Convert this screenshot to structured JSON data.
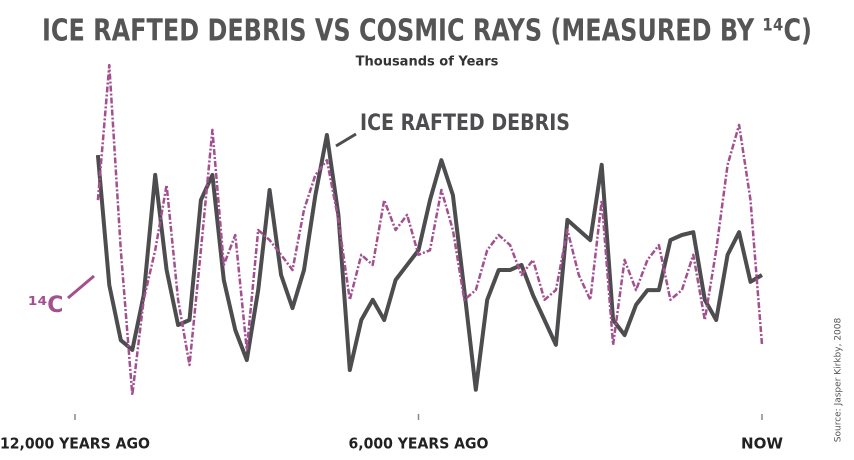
{
  "chart_data": {
    "type": "line",
    "title": "ICE RAFTED DEBRIS VS COSMIC RAYS (MEASURED BY ¹⁴C)",
    "subtitle": "Thousands of Years",
    "source": "Source: Jasper Kirkby, 2008",
    "x": [
      12000,
      11800,
      11600,
      11400,
      11200,
      11000,
      10800,
      10600,
      10400,
      10200,
      10000,
      9800,
      9600,
      9400,
      9200,
      9000,
      8800,
      8600,
      8400,
      8200,
      8000,
      7800,
      7600,
      7400,
      7200,
      7000,
      6800,
      6600,
      6400,
      6200,
      6000,
      5800,
      5600,
      5400,
      5200,
      5000,
      4800,
      4600,
      4400,
      4200,
      4000,
      3800,
      3600,
      3400,
      3200,
      3000,
      2800,
      2600,
      2400,
      2200,
      2000,
      1800,
      1600,
      1400,
      1200,
      1000,
      800,
      600,
      400,
      200,
      0
    ],
    "xlim": [
      12000,
      0
    ],
    "xticks": [
      {
        "value": 12000,
        "label": "12,000 YEARS AGO"
      },
      {
        "value": 6000,
        "label": "6,000 YEARS AGO"
      },
      {
        "value": 0,
        "label": "NOW"
      }
    ],
    "ylim": [
      0,
      100
    ],
    "series": [
      {
        "name": "ICE RAFTED DEBRIS",
        "color": "#4d4d4f",
        "dash": false,
        "values": [
          null,
          null,
          70.8,
          34.7,
          19.4,
          16.7,
          31.9,
          65.3,
          38.9,
          23.6,
          25,
          58.3,
          65.3,
          36.1,
          22.2,
          13.9,
          33.3,
          61.1,
          37.5,
          28.3,
          38.9,
          59.7,
          76.4,
          54.2,
          11.1,
          25,
          30.6,
          25,
          36.1,
          40.3,
          44.4,
          58.3,
          69.4,
          59.7,
          33.3,
          5.6,
          30.6,
          38.9,
          38.9,
          40.3,
          31.9,
          25,
          18.1,
          52.8,
          50,
          47.2,
          68.1,
          25,
          20.8,
          29.2,
          33.3,
          33.3,
          47.2,
          48.6,
          49.4,
          30.6,
          25,
          43.1,
          49.4,
          35.6,
          37.5
        ]
      },
      {
        "name": "¹⁴C",
        "color": "#a2508f",
        "dash": true,
        "values": [
          null,
          null,
          58.3,
          95.8,
          44.4,
          4.2,
          30.6,
          44.4,
          62.5,
          30.6,
          12.5,
          44.4,
          77.8,
          40.3,
          48.6,
          16.7,
          50,
          47.2,
          43.1,
          38.9,
          55.6,
          65.3,
          69.4,
          52.8,
          30.6,
          43.1,
          40.3,
          58.3,
          50,
          54.2,
          43.1,
          44.4,
          61.1,
          50,
          30.6,
          33.3,
          44.4,
          48.6,
          45.8,
          37.5,
          41.7,
          30.6,
          33.3,
          50,
          37.5,
          30.6,
          58.3,
          18.1,
          41.7,
          33.3,
          41.7,
          45.8,
          30.6,
          33.3,
          43.1,
          25,
          44.4,
          68.1,
          79.2,
          58.3,
          18.1
        ]
      }
    ]
  }
}
